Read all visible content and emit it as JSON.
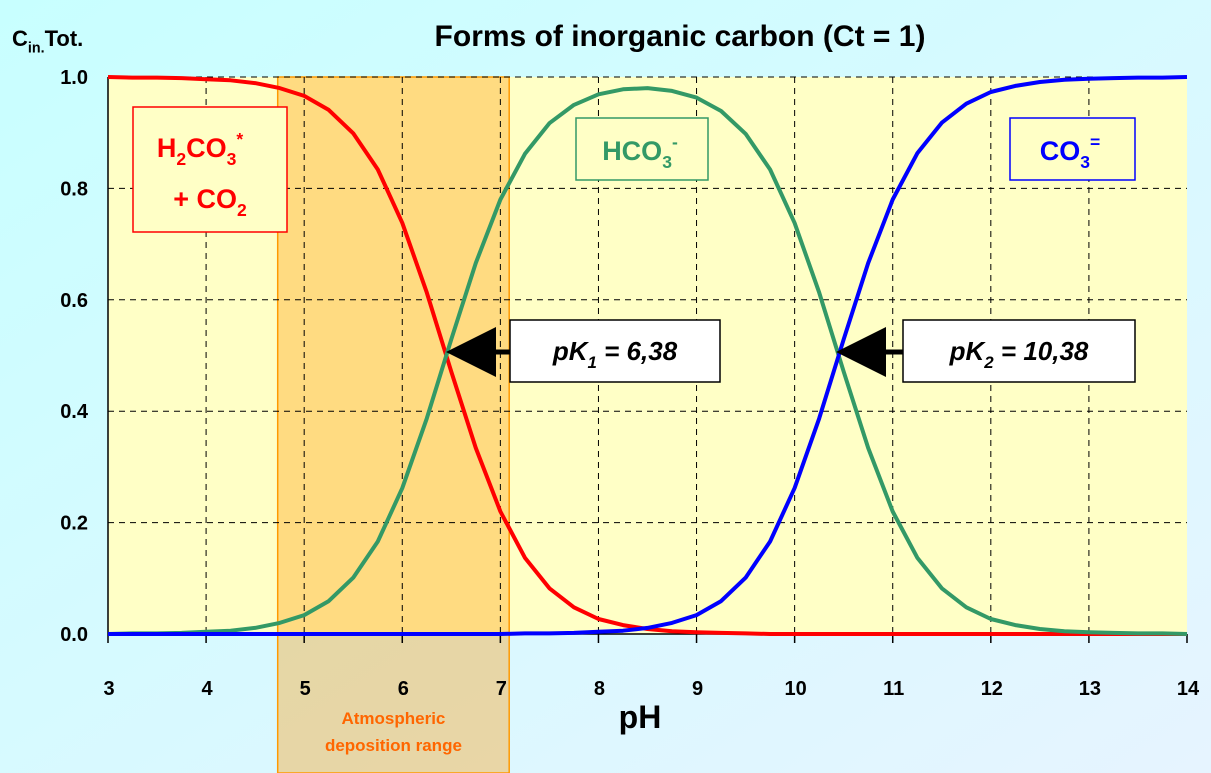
{
  "chart_data": {
    "type": "line",
    "title": "Forms of inorganic carbon (Ct = 1)",
    "y_label": [
      {
        "text": "C"
      },
      {
        "text": "in.",
        "shift": "sub"
      },
      {
        "text": "Tot."
      }
    ],
    "x_label": "pH",
    "xlim": [
      3,
      14
    ],
    "xticks": [
      3,
      4,
      5,
      6,
      7,
      8,
      9,
      10,
      11,
      12,
      13,
      14
    ],
    "ylim": [
      0,
      1
    ],
    "yticks": [
      {
        "value": 0,
        "label": "0.0"
      },
      0.2,
      0.4,
      0.6,
      0.8,
      {
        "value": 1,
        "label": "1.0"
      }
    ],
    "grid": true,
    "x": [
      3,
      3.25,
      3.5,
      3.75,
      4,
      4.25,
      4.5,
      4.75,
      5,
      5.25,
      5.5,
      5.75,
      6,
      6.25,
      6.5,
      6.75,
      7,
      7.25,
      7.5,
      7.75,
      8,
      8.25,
      8.5,
      8.75,
      9,
      9.25,
      9.5,
      9.75,
      10,
      10.25,
      10.5,
      10.75,
      11,
      11.25,
      11.5,
      11.75,
      12,
      12.25,
      12.5,
      12.75,
      13,
      13.25,
      13.5,
      13.75,
      14
    ],
    "series": [
      {
        "color": "#ff0000",
        "values": [
          1,
          0.999,
          0.999,
          0.998,
          0.996,
          0.994,
          0.989,
          0.98,
          0.966,
          0.941,
          0.899,
          0.834,
          0.738,
          0.613,
          0.471,
          0.334,
          0.22,
          0.137,
          0.082,
          0.048,
          0.027,
          0.016,
          0.009,
          0.005,
          0.003,
          0.002,
          0.001,
          0,
          0,
          0,
          0,
          0,
          0,
          0,
          0,
          0,
          0,
          0,
          0,
          0,
          0,
          0,
          0,
          0,
          0
        ]
      },
      {
        "color": "#339966",
        "values": [
          0,
          0.001,
          0.001,
          0.002,
          0.004,
          0.006,
          0.011,
          0.02,
          0.034,
          0.059,
          0.101,
          0.166,
          0.262,
          0.387,
          0.529,
          0.666,
          0.78,
          0.862,
          0.917,
          0.95,
          0.969,
          0.978,
          0.98,
          0.975,
          0.963,
          0.939,
          0.898,
          0.834,
          0.738,
          0.613,
          0.471,
          0.334,
          0.22,
          0.137,
          0.082,
          0.048,
          0.027,
          0.016,
          0.009,
          0.005,
          0.003,
          0.002,
          0.001,
          0.001,
          0
        ]
      },
      {
        "color": "#0000ff",
        "values": [
          0,
          0,
          0,
          0,
          0,
          0,
          0,
          0,
          0,
          0,
          0,
          0,
          0,
          0,
          0,
          0,
          0,
          0.001,
          0.001,
          0.002,
          0.004,
          0.006,
          0.011,
          0.02,
          0.034,
          0.059,
          0.101,
          0.166,
          0.262,
          0.387,
          0.529,
          0.666,
          0.78,
          0.863,
          0.918,
          0.952,
          0.973,
          0.984,
          0.991,
          0.995,
          0.997,
          0.998,
          0.999,
          0.999,
          1
        ]
      }
    ],
    "shaded_range": {
      "span": [
        4.73,
        7.09
      ],
      "color": "#ff9900",
      "lines": [
        "Atmospheric",
        "deposition range"
      ]
    },
    "species_labels": [
      {
        "color": "#ff0000",
        "lines": [
          [
            {
              "text": "H"
            },
            {
              "text": "2",
              "shift": "sub"
            },
            {
              "text": "CO"
            },
            {
              "text": "3",
              "shift": "sub"
            },
            {
              "text": "*",
              "shift": "sup"
            }
          ],
          [
            {
              "text": "+ CO"
            },
            {
              "text": "2",
              "shift": "sub"
            }
          ]
        ]
      },
      {
        "color": "#339966",
        "lines": [
          [
            {
              "text": "HCO"
            },
            {
              "text": "3",
              "shift": "sub"
            },
            {
              "text": "-",
              "shift": "sup"
            }
          ]
        ]
      },
      {
        "color": "#0000ff",
        "lines": [
          [
            {
              "text": "CO"
            },
            {
              "text": "3",
              "shift": "sub"
            },
            {
              "text": "=",
              "shift": "sup"
            }
          ]
        ]
      }
    ],
    "pk_labels": [
      [
        {
          "text": "pK"
        },
        {
          "text": "1",
          "shift": "sub"
        },
        {
          "text": " = 6,38"
        }
      ],
      [
        {
          "text": "pK"
        },
        {
          "text": "2",
          "shift": "sub"
        },
        {
          "text": " = 10,38"
        }
      ]
    ]
  }
}
